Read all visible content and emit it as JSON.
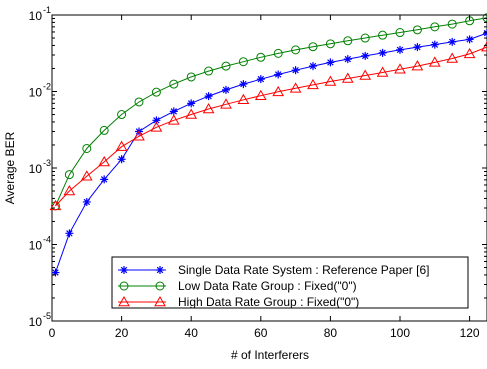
{
  "chart_data": {
    "type": "line",
    "title": "",
    "xlabel": "# of Interferers",
    "ylabel": "Average BER",
    "xlim": [
      0,
      125
    ],
    "ylim": [
      1e-05,
      0.1
    ],
    "yscale": "log",
    "grid": false,
    "legend_position": "lower-right",
    "x_ticks": [
      "0",
      "20",
      "40",
      "60",
      "80",
      "100",
      "120"
    ],
    "y_ticks": [
      {
        "value": 1e-05,
        "label": "10",
        "exp": "-5"
      },
      {
        "value": 0.0001,
        "label": "10",
        "exp": "-4"
      },
      {
        "value": 0.001,
        "label": "10",
        "exp": "-3"
      },
      {
        "value": 0.01,
        "label": "10",
        "exp": "-2"
      },
      {
        "value": 0.1,
        "label": "10",
        "exp": "-1"
      }
    ],
    "x": [
      1,
      5,
      10,
      15,
      20,
      25,
      30,
      35,
      40,
      45,
      50,
      55,
      60,
      65,
      70,
      75,
      80,
      85,
      90,
      95,
      100,
      105,
      110,
      115,
      120,
      125
    ],
    "series": [
      {
        "name": "Single Data Rate System : Reference Paper [6]",
        "color": "#0000ff",
        "marker": "star",
        "values": [
          4.3e-05,
          0.00014,
          0.00036,
          0.00071,
          0.0013,
          0.003,
          0.0042,
          0.0055,
          0.007,
          0.0087,
          0.0105,
          0.0125,
          0.0145,
          0.0167,
          0.019,
          0.0215,
          0.024,
          0.0265,
          0.0292,
          0.032,
          0.035,
          0.038,
          0.041,
          0.0445,
          0.048,
          0.058
        ]
      },
      {
        "name": "Low Data Rate Group : Fixed(\"0\")",
        "color": "#008000",
        "marker": "circle",
        "values": [
          0.00032,
          0.00082,
          0.0018,
          0.0031,
          0.005,
          0.0073,
          0.0098,
          0.0125,
          0.0155,
          0.0185,
          0.0215,
          0.0245,
          0.028,
          0.0315,
          0.035,
          0.0385,
          0.042,
          0.046,
          0.05,
          0.0545,
          0.059,
          0.064,
          0.07,
          0.076,
          0.084,
          0.092
        ]
      },
      {
        "name": "High Data Rate Group : Fixed(\"0\")",
        "color": "#ff0000",
        "marker": "triangle",
        "values": [
          0.00032,
          0.0005,
          0.00078,
          0.0012,
          0.0019,
          0.0026,
          0.0034,
          0.0042,
          0.005,
          0.0059,
          0.0068,
          0.0078,
          0.0088,
          0.0099,
          0.011,
          0.0122,
          0.0135,
          0.0148,
          0.0162,
          0.0177,
          0.0195,
          0.0215,
          0.024,
          0.027,
          0.031,
          0.038
        ]
      }
    ]
  }
}
